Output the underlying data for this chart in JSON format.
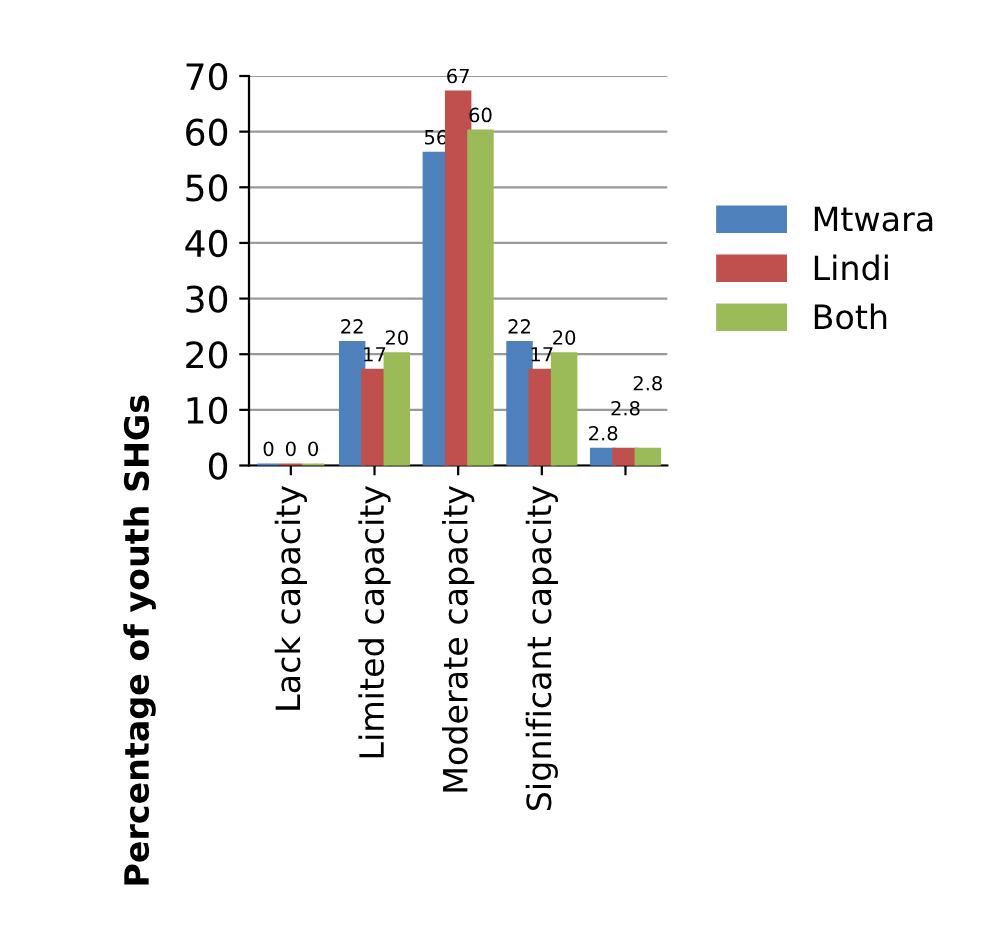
{
  "chart_data": {
    "type": "bar",
    "ylabel": "Percentage of youth SHGs",
    "categories": [
      "Lack capacity",
      "Limited capacity",
      "Moderate capacity",
      "Significant capacity",
      null
    ],
    "series": [
      {
        "name": "Mtwara",
        "color": "#4f81bd",
        "values": [
          0,
          22,
          56,
          22,
          2.8
        ]
      },
      {
        "name": "Lindi",
        "color": "#c0504d",
        "values": [
          0,
          17,
          67,
          17,
          2.8
        ]
      },
      {
        "name": "Both",
        "color": "#9bbb59",
        "values": [
          0,
          20,
          60,
          20,
          2.8
        ]
      }
    ],
    "ylim": [
      0,
      70
    ],
    "yticks": [
      0,
      10,
      20,
      30,
      40,
      50,
      60,
      70
    ],
    "grid": "y",
    "legend": "right",
    "data_labels": true
  }
}
